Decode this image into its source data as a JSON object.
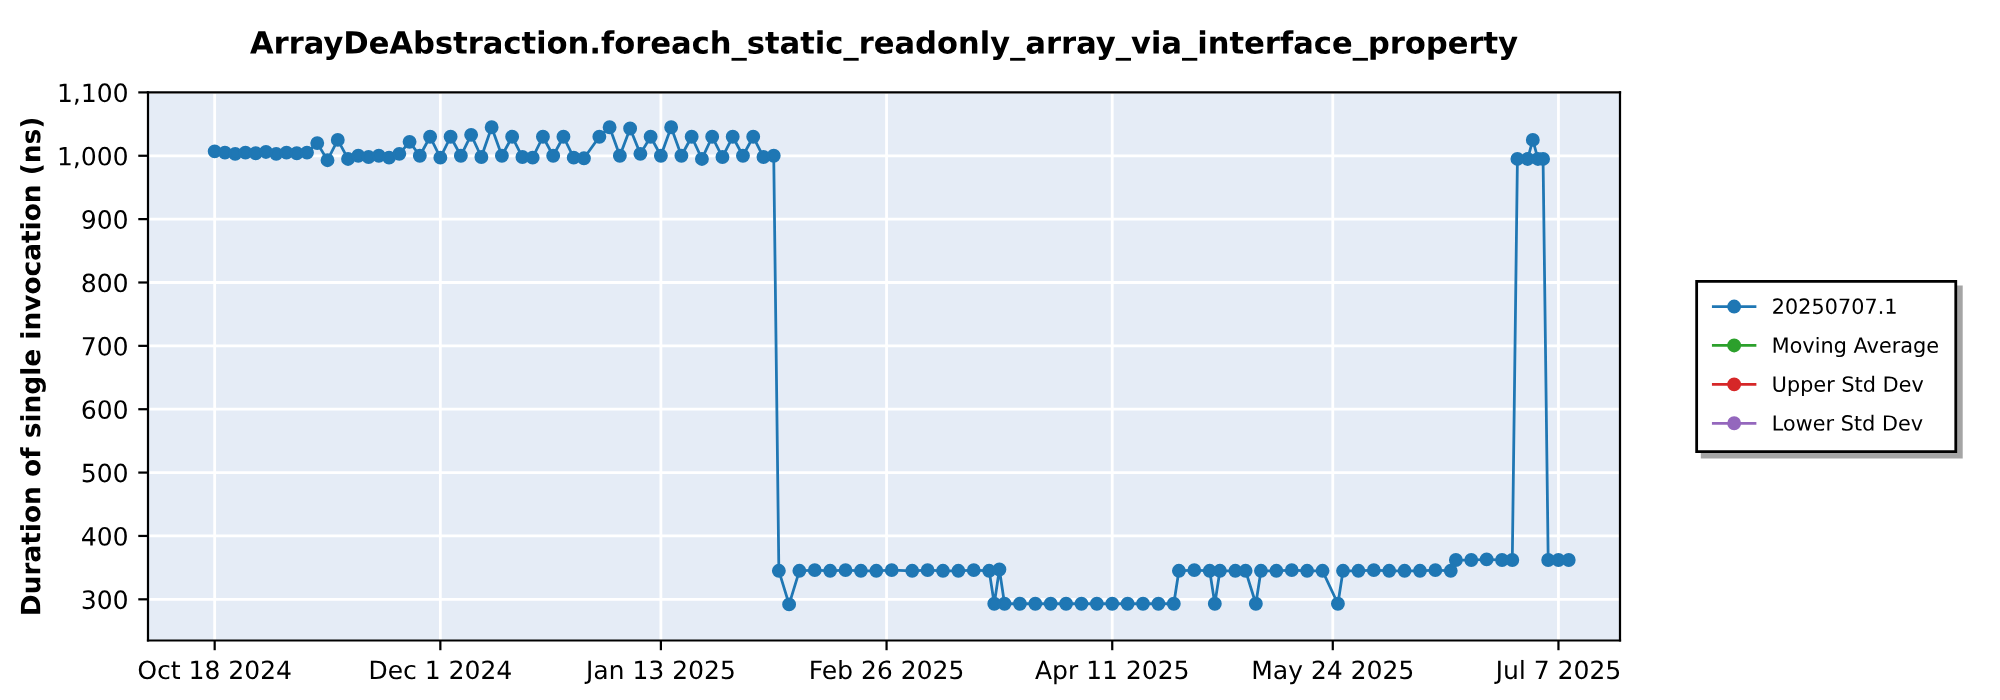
{
  "chart_data": {
    "type": "line",
    "title": "ArrayDeAbstraction.foreach_static_readonly_array_via_interface_property",
    "ylabel": "Duration of single invocation (ns)",
    "xlim": [
      "2024-10-05",
      "2025-07-19"
    ],
    "ylim": [
      235,
      1100
    ],
    "xticks": [
      {
        "value": "2024-10-18",
        "label": "Oct 18 2024"
      },
      {
        "value": "2024-12-01",
        "label": "Dec 1 2024"
      },
      {
        "value": "2025-01-13",
        "label": "Jan 13 2025"
      },
      {
        "value": "2025-02-26",
        "label": "Feb 26 2025"
      },
      {
        "value": "2025-04-11",
        "label": "Apr 11 2025"
      },
      {
        "value": "2025-05-24",
        "label": "May 24 2025"
      },
      {
        "value": "2025-07-07",
        "label": "Jul 7 2025"
      }
    ],
    "yticks": [
      300,
      400,
      500,
      600,
      700,
      800,
      900,
      {
        "value": 1000,
        "label": "1,000"
      },
      {
        "value": 1100,
        "label": "1,100"
      }
    ],
    "grid": true,
    "legend": "right",
    "marker": "circle",
    "line_style": "solid",
    "series": [
      {
        "name": "20250707.1",
        "color": "#1f77b4",
        "x": [
          "2024-10-18",
          "2024-10-20",
          "2024-10-22",
          "2024-10-24",
          "2024-10-26",
          "2024-10-28",
          "2024-10-30",
          "2024-11-01",
          "2024-11-03",
          "2024-11-05",
          "2024-11-07",
          "2024-11-09",
          "2024-11-11",
          "2024-11-13",
          "2024-11-15",
          "2024-11-17",
          "2024-11-19",
          "2024-11-21",
          "2024-11-23",
          "2024-11-25",
          "2024-11-27",
          "2024-11-29",
          "2024-12-01",
          "2024-12-03",
          "2024-12-05",
          "2024-12-07",
          "2024-12-09",
          "2024-12-11",
          "2024-12-13",
          "2024-12-15",
          "2024-12-17",
          "2024-12-19",
          "2024-12-21",
          "2024-12-23",
          "2024-12-25",
          "2024-12-27",
          "2024-12-29",
          "2025-01-01",
          "2025-01-03",
          "2025-01-05",
          "2025-01-07",
          "2025-01-09",
          "2025-01-11",
          "2025-01-13",
          "2025-01-15",
          "2025-01-17",
          "2025-01-19",
          "2025-01-21",
          "2025-01-23",
          "2025-01-25",
          "2025-01-27",
          "2025-01-29",
          "2025-01-31",
          "2025-02-02",
          "2025-02-04",
          "2025-02-05",
          "2025-02-07",
          "2025-02-09",
          "2025-02-12",
          "2025-02-15",
          "2025-02-18",
          "2025-02-21",
          "2025-02-24",
          "2025-02-27",
          "2025-03-03",
          "2025-03-06",
          "2025-03-09",
          "2025-03-12",
          "2025-03-15",
          "2025-03-18",
          "2025-03-19",
          "2025-03-20",
          "2025-03-21",
          "2025-03-24",
          "2025-03-27",
          "2025-03-30",
          "2025-04-02",
          "2025-04-05",
          "2025-04-08",
          "2025-04-11",
          "2025-04-14",
          "2025-04-17",
          "2025-04-20",
          "2025-04-23",
          "2025-04-24",
          "2025-04-27",
          "2025-04-30",
          "2025-05-01",
          "2025-05-02",
          "2025-05-05",
          "2025-05-07",
          "2025-05-09",
          "2025-05-10",
          "2025-05-13",
          "2025-05-16",
          "2025-05-19",
          "2025-05-22",
          "2025-05-25",
          "2025-05-26",
          "2025-05-29",
          "2025-06-01",
          "2025-06-04",
          "2025-06-07",
          "2025-06-10",
          "2025-06-13",
          "2025-06-16",
          "2025-06-17",
          "2025-06-20",
          "2025-06-23",
          "2025-06-26",
          "2025-06-28",
          "2025-06-29",
          "2025-07-01",
          "2025-07-02",
          "2025-07-03",
          "2025-07-04",
          "2025-07-05",
          "2025-07-07",
          "2025-07-09"
        ],
        "values": [
          1007,
          1005,
          1003,
          1005,
          1004,
          1006,
          1003,
          1005,
          1004,
          1005,
          1020,
          993,
          1025,
          995,
          1000,
          998,
          1000,
          997,
          1003,
          1022,
          1000,
          1030,
          997,
          1030,
          1000,
          1033,
          998,
          1045,
          1000,
          1030,
          998,
          997,
          1030,
          1000,
          1030,
          997,
          996,
          1030,
          1045,
          1000,
          1043,
          1003,
          1030,
          1000,
          1045,
          1000,
          1030,
          995,
          1030,
          998,
          1030,
          1000,
          1030,
          998,
          1000,
          345,
          292,
          345,
          346,
          345,
          346,
          345,
          345,
          346,
          345,
          346,
          345,
          345,
          346,
          345,
          293,
          347,
          293,
          293,
          293,
          293,
          293,
          293,
          293,
          293,
          293,
          293,
          293,
          293,
          345,
          346,
          345,
          293,
          345,
          345,
          345,
          293,
          345,
          345,
          346,
          345,
          345,
          293,
          345,
          345,
          346,
          345,
          345,
          345,
          346,
          345,
          362,
          362,
          363,
          362,
          362,
          995,
          995,
          1025,
          995,
          995,
          362,
          362,
          362
        ]
      },
      {
        "name": "Moving Average",
        "color": "#2ca02c"
      },
      {
        "name": "Upper Std Dev",
        "color": "#d62728"
      },
      {
        "name": "Lower Std Dev",
        "color": "#9467bd"
      }
    ]
  }
}
